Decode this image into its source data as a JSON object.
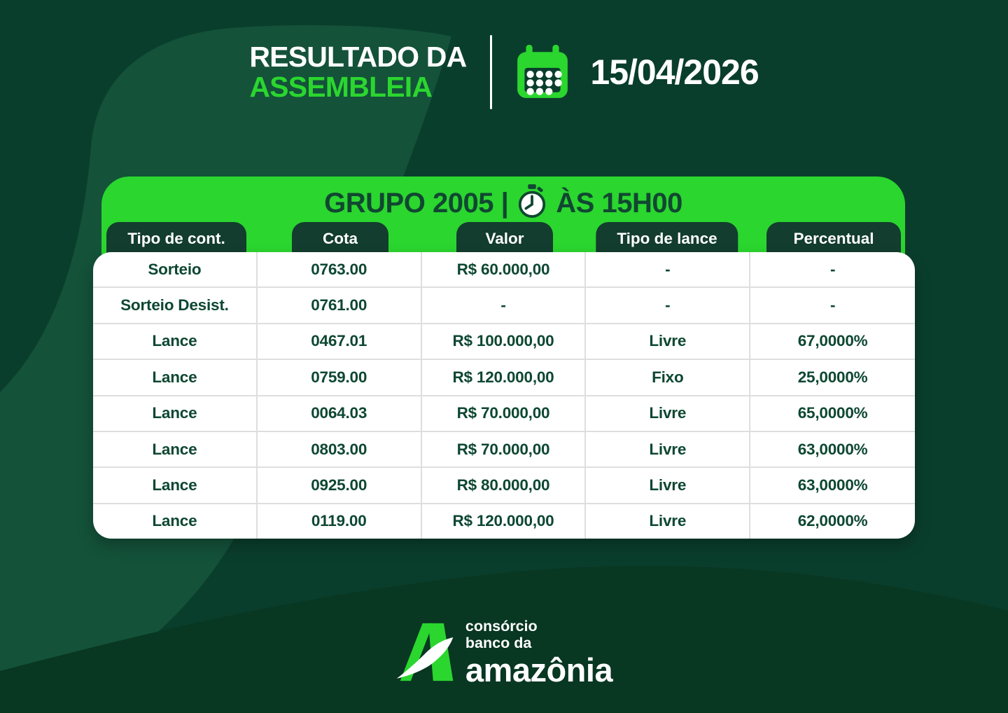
{
  "header": {
    "title_line1": "RESULTADO DA",
    "title_line2": "ASSEMBLEIA",
    "date": "15/04/2026"
  },
  "panel": {
    "title_left": "GRUPO 2005 |",
    "title_right": "ÀS 15H00"
  },
  "table": {
    "columns": [
      "Tipo de cont.",
      "Cota",
      "Valor",
      "Tipo de lance",
      "Percentual"
    ],
    "rows": [
      [
        "Sorteio",
        "0763.00",
        "R$ 60.000,00",
        "-",
        "-"
      ],
      [
        "Sorteio Desist.",
        "0761.00",
        "-",
        "-",
        "-"
      ],
      [
        "Lance",
        "0467.01",
        "R$ 100.000,00",
        "Livre",
        "67,0000%"
      ],
      [
        "Lance",
        "0759.00",
        "R$ 120.000,00",
        "Fixo",
        "25,0000%"
      ],
      [
        "Lance",
        "0064.03",
        "R$ 70.000,00",
        "Livre",
        "65,0000%"
      ],
      [
        "Lance",
        "0803.00",
        "R$ 70.000,00",
        "Livre",
        "63,0000%"
      ],
      [
        "Lance",
        "0925.00",
        "R$ 80.000,00",
        "Livre",
        "63,0000%"
      ],
      [
        "Lance",
        "0119.00",
        "R$ 120.000,00",
        "Livre",
        "62,0000%"
      ]
    ]
  },
  "footer": {
    "logo_line1": "consórcio",
    "logo_line2": "banco da",
    "logo_line3": "amazônia"
  },
  "icons": {
    "header_icon": "calendar-icon",
    "panel_icon": "stopwatch-icon",
    "logo_icon": "amazonia-leaf-logo"
  },
  "colors": {
    "background": "#0A3E2C",
    "background_swoosh": "#14523A",
    "background_sweep": "#083722",
    "accent_green": "#2BD62F",
    "dark_green_text": "#0D4732",
    "pill_background": "#133D2E",
    "table_divider": "#DEDEDE",
    "white": "#FFFFFF"
  }
}
